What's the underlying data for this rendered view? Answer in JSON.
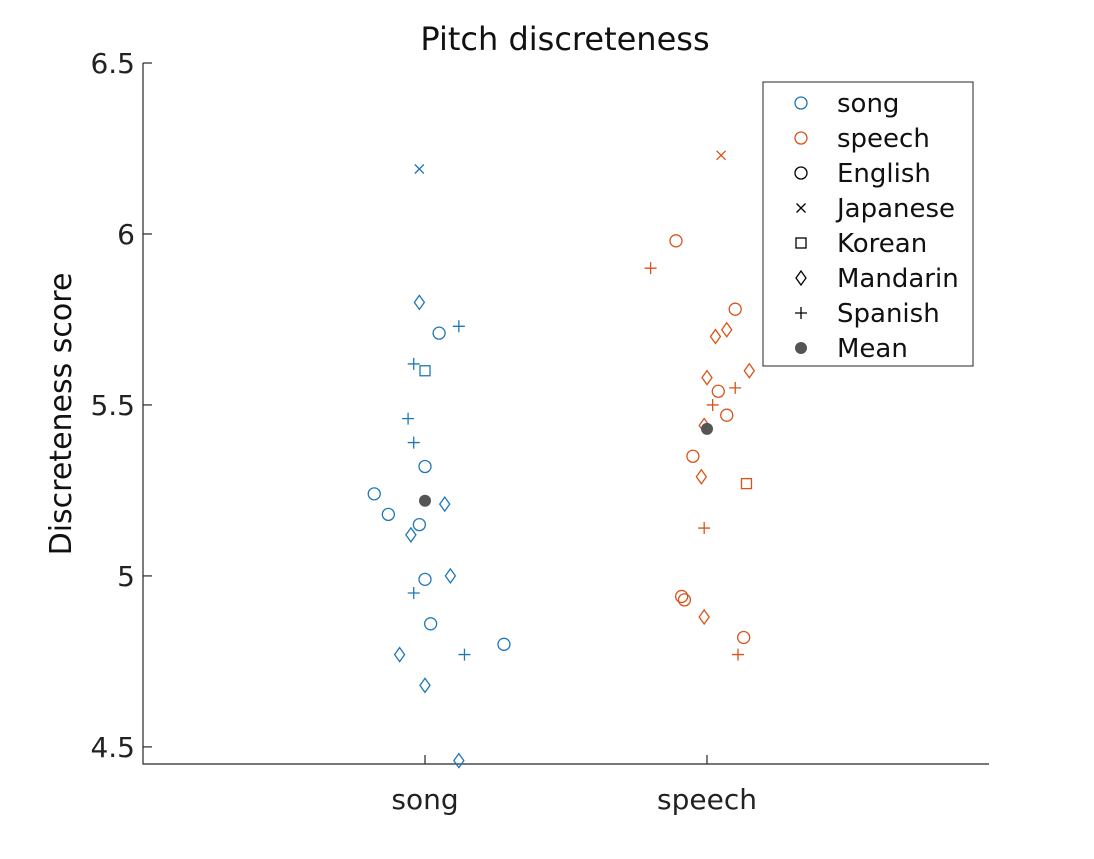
{
  "chart_data": {
    "type": "scatter",
    "title": "Pitch discreteness",
    "ylabel": "Discreteness score",
    "xlabel": "",
    "categories": [
      "song",
      "speech"
    ],
    "ylim": [
      4.45,
      6.5
    ],
    "yticks": [
      {
        "value": 4.5,
        "label": "4.5"
      },
      {
        "value": 5,
        "label": "5"
      },
      {
        "value": 5.5,
        "label": "5.5"
      },
      {
        "value": 6,
        "label": "6"
      },
      {
        "value": 6.5,
        "label": "6.5"
      }
    ],
    "legend_position": "top-right",
    "colors": {
      "song": "#1f77b4",
      "speech": "#d95319",
      "mean": "#555555",
      "neutral": "#000000"
    },
    "legend": [
      {
        "label": "song",
        "marker": "circle",
        "color": "#1f77b4"
      },
      {
        "label": "speech",
        "marker": "circle",
        "color": "#d95319"
      },
      {
        "label": "English",
        "marker": "circle",
        "color": "#000000"
      },
      {
        "label": "Japanese",
        "marker": "x",
        "color": "#000000"
      },
      {
        "label": "Korean",
        "marker": "square",
        "color": "#000000"
      },
      {
        "label": "Mandarin",
        "marker": "diamond",
        "color": "#000000"
      },
      {
        "label": "Spanish",
        "marker": "plus",
        "color": "#000000"
      },
      {
        "label": "Mean",
        "marker": "dot",
        "color": "#555555"
      }
    ],
    "series": [
      {
        "group": "song",
        "points": [
          {
            "x": 0.98,
            "y": 6.19,
            "language": "Japanese"
          },
          {
            "x": 0.98,
            "y": 5.8,
            "language": "Mandarin"
          },
          {
            "x": 1.05,
            "y": 5.71,
            "language": "English"
          },
          {
            "x": 1.12,
            "y": 5.73,
            "language": "Spanish"
          },
          {
            "x": 0.96,
            "y": 5.62,
            "language": "Spanish"
          },
          {
            "x": 1.0,
            "y": 5.6,
            "language": "Korean"
          },
          {
            "x": 0.94,
            "y": 5.46,
            "language": "Spanish"
          },
          {
            "x": 0.96,
            "y": 5.39,
            "language": "Spanish"
          },
          {
            "x": 1.0,
            "y": 5.32,
            "language": "English"
          },
          {
            "x": 0.82,
            "y": 5.24,
            "language": "English"
          },
          {
            "x": 0.87,
            "y": 5.18,
            "language": "English"
          },
          {
            "x": 1.07,
            "y": 5.21,
            "language": "Mandarin"
          },
          {
            "x": 0.98,
            "y": 5.15,
            "language": "English"
          },
          {
            "x": 0.95,
            "y": 5.12,
            "language": "Mandarin"
          },
          {
            "x": 1.0,
            "y": 4.99,
            "language": "English"
          },
          {
            "x": 1.09,
            "y": 5.0,
            "language": "Mandarin"
          },
          {
            "x": 0.96,
            "y": 4.95,
            "language": "Spanish"
          },
          {
            "x": 1.02,
            "y": 4.86,
            "language": "English"
          },
          {
            "x": 1.28,
            "y": 4.8,
            "language": "English"
          },
          {
            "x": 0.91,
            "y": 4.77,
            "language": "Mandarin"
          },
          {
            "x": 1.14,
            "y": 4.77,
            "language": "Spanish"
          },
          {
            "x": 1.0,
            "y": 4.68,
            "language": "Mandarin"
          },
          {
            "x": 1.12,
            "y": 4.46,
            "language": "Mandarin"
          }
        ],
        "mean": 5.22
      },
      {
        "group": "speech",
        "points": [
          {
            "x": 2.05,
            "y": 6.23,
            "language": "Japanese"
          },
          {
            "x": 1.89,
            "y": 5.98,
            "language": "English"
          },
          {
            "x": 1.8,
            "y": 5.9,
            "language": "Spanish"
          },
          {
            "x": 2.1,
            "y": 5.78,
            "language": "English"
          },
          {
            "x": 2.07,
            "y": 5.72,
            "language": "Mandarin"
          },
          {
            "x": 2.03,
            "y": 5.7,
            "language": "Mandarin"
          },
          {
            "x": 2.15,
            "y": 5.6,
            "language": "Mandarin"
          },
          {
            "x": 2.0,
            "y": 5.58,
            "language": "Mandarin"
          },
          {
            "x": 2.1,
            "y": 5.55,
            "language": "Spanish"
          },
          {
            "x": 2.04,
            "y": 5.54,
            "language": "English"
          },
          {
            "x": 2.02,
            "y": 5.5,
            "language": "Spanish"
          },
          {
            "x": 2.07,
            "y": 5.47,
            "language": "English"
          },
          {
            "x": 1.99,
            "y": 5.44,
            "language": "Mandarin"
          },
          {
            "x": 1.95,
            "y": 5.35,
            "language": "English"
          },
          {
            "x": 1.98,
            "y": 5.29,
            "language": "Mandarin"
          },
          {
            "x": 2.14,
            "y": 5.27,
            "language": "Korean"
          },
          {
            "x": 1.99,
            "y": 5.14,
            "language": "Spanish"
          },
          {
            "x": 1.91,
            "y": 4.94,
            "language": "English"
          },
          {
            "x": 1.92,
            "y": 4.93,
            "language": "English"
          },
          {
            "x": 1.99,
            "y": 4.88,
            "language": "Mandarin"
          },
          {
            "x": 2.13,
            "y": 4.82,
            "language": "English"
          },
          {
            "x": 2.11,
            "y": 4.77,
            "language": "Spanish"
          }
        ],
        "mean": 5.43
      }
    ]
  }
}
